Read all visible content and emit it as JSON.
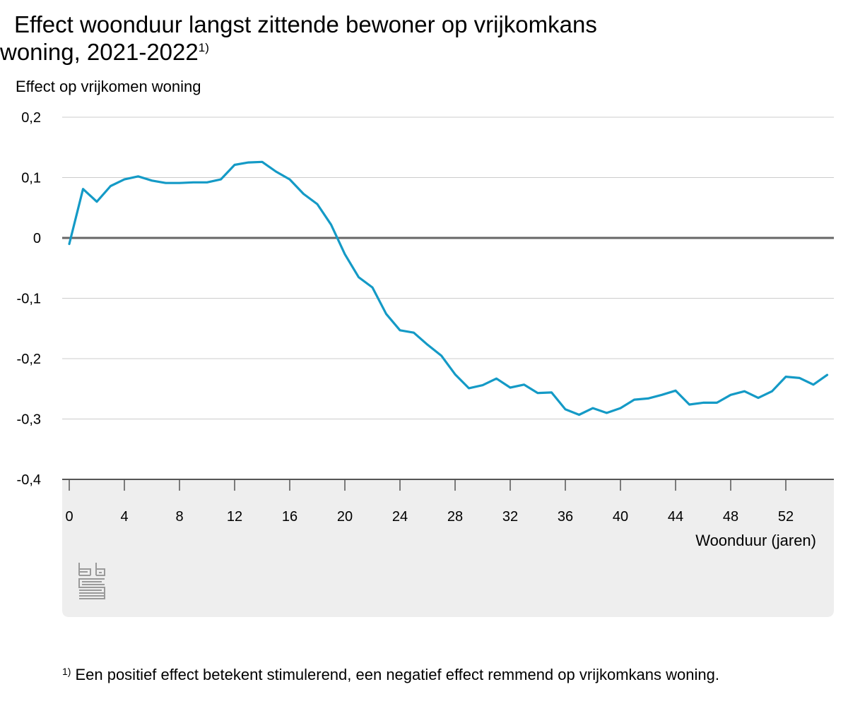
{
  "chart_data": {
    "type": "line",
    "title": "Effect woonduur langst zittende bewoner op vrijkomkans woning, 2021-2022",
    "title_line1": "Effect woonduur langst zittende bewoner op vrijkomkans",
    "title_line2": "woning, 2021-2022",
    "title_footnote_marker": "1)",
    "ylabel": "Effect op vrijkomen woning",
    "xlabel": "Woonduur (jaren)",
    "ylim": [
      -0.4,
      0.2
    ],
    "y_ticks": [
      "0,2",
      "0,1",
      "0",
      "-0,1",
      "-0,2",
      "-0,3",
      "-0,4"
    ],
    "y_tick_values": [
      0.2,
      0.1,
      0,
      -0.1,
      -0.2,
      -0.3,
      -0.4
    ],
    "xlim": [
      -0.5,
      55
    ],
    "x_ticks": [
      "0",
      "4",
      "8",
      "12",
      "16",
      "20",
      "24",
      "28",
      "32",
      "36",
      "40",
      "44",
      "48",
      "52"
    ],
    "x_tick_values": [
      0,
      4,
      8,
      12,
      16,
      20,
      24,
      28,
      32,
      36,
      40,
      44,
      48,
      52
    ],
    "grid": true,
    "legend": "none",
    "series": [
      {
        "color": "#149ac6",
        "x": [
          0,
          1,
          2,
          3,
          4,
          5,
          6,
          7,
          8,
          9,
          10,
          11,
          12,
          13,
          14,
          15,
          16,
          17,
          18,
          19,
          20,
          21,
          22,
          23,
          24,
          25,
          26,
          27,
          28,
          29,
          30,
          31,
          32,
          33,
          34,
          35,
          36,
          37,
          38,
          39,
          40,
          41,
          42,
          43,
          44,
          45,
          46,
          47,
          48,
          49,
          50,
          51,
          52,
          53,
          54,
          55
        ],
        "values": [
          -0.01,
          0.081,
          0.06,
          0.086,
          0.097,
          0.102,
          0.095,
          0.091,
          0.091,
          0.092,
          0.092,
          0.097,
          0.121,
          0.125,
          0.126,
          0.11,
          0.097,
          0.073,
          0.056,
          0.022,
          -0.027,
          -0.065,
          -0.082,
          -0.126,
          -0.153,
          -0.157,
          -0.177,
          -0.195,
          -0.226,
          -0.249,
          -0.244,
          -0.233,
          -0.248,
          -0.243,
          -0.257,
          -0.256,
          -0.284,
          -0.293,
          -0.282,
          -0.29,
          -0.282,
          -0.268,
          -0.266,
          -0.26,
          -0.253,
          -0.276,
          -0.273,
          -0.273,
          -0.26,
          -0.254,
          -0.265,
          -0.254,
          -0.23,
          -0.232,
          -0.243,
          -0.227
        ]
      }
    ],
    "footnote_marker": "1)",
    "footnote": "Een positief effect betekent stimulerend, een negatief effect remmend op vrijkomkans woning."
  },
  "colors": {
    "line": "#149ac6",
    "zero_line": "#666666",
    "grid": "#cccccc",
    "x_axis_panel": "#eeeeee",
    "axis": "#555555",
    "logo": "#9a9a9a"
  },
  "logo": {
    "icon": "cbs-logo-icon",
    "text": "cbs"
  }
}
